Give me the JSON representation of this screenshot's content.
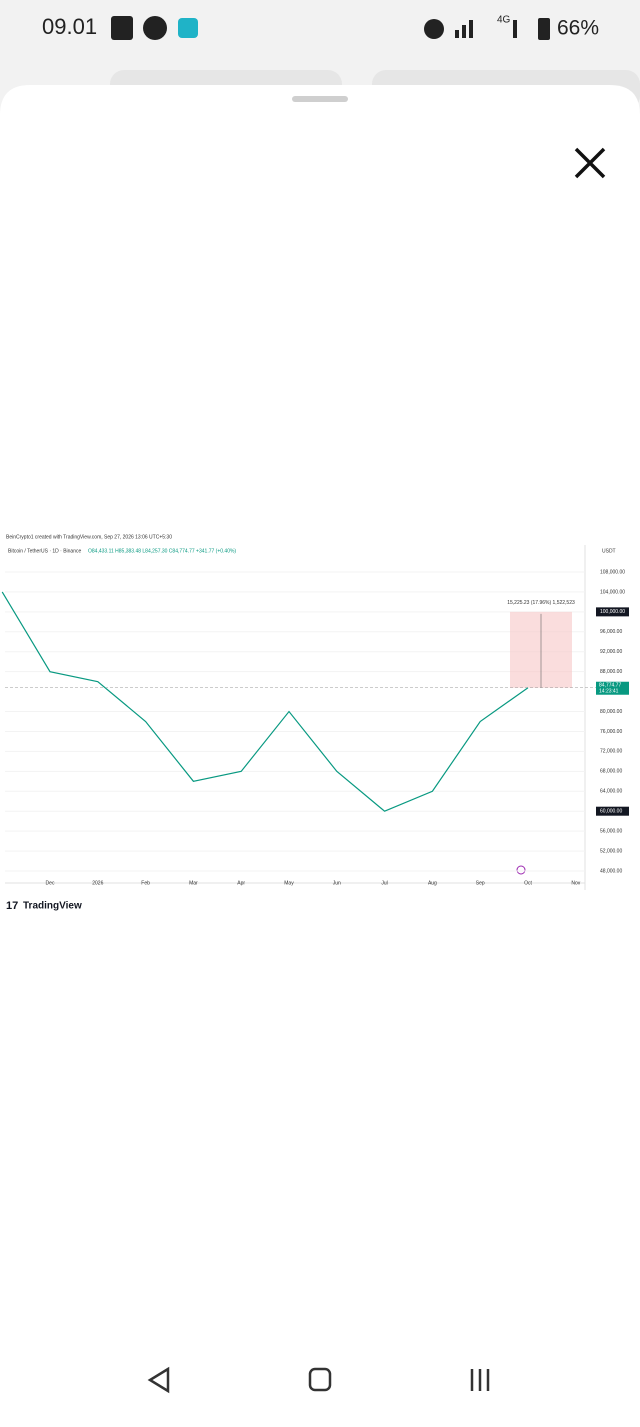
{
  "status_bar": {
    "time": "09.01",
    "network": "4G",
    "battery": "66%"
  },
  "chart_data": {
    "type": "line",
    "header": "BeinCrypto1 created with TradingView.com, Sep 27, 2026 13:06 UTC+5:30",
    "symbol": "Bitcoin / TetherUS · 1D · Binance",
    "ohlc": "O84,433.11 H85,383.48 L84,257.30 C84,774.77 +341.77 (+0.40%)",
    "currency": "USDT",
    "categories": [
      null,
      "Dec",
      "2026",
      "Feb",
      "Mar",
      "Apr",
      "May",
      "Jun",
      "Jul",
      "Aug",
      "Sep",
      "Oct",
      "Nov"
    ],
    "series": [
      {
        "name": "Bitcoin / TetherUS",
        "color": "#089981",
        "values": [
          104000,
          88000,
          86000,
          78000,
          66000,
          68000,
          80000,
          68000,
          60000,
          64000,
          78000,
          84774.77,
          null
        ]
      }
    ],
    "ylim": [
      48000,
      108000
    ],
    "yticks": [
      {
        "value": 48000,
        "label": "48,000.00"
      },
      {
        "value": 52000,
        "label": "52,000.00"
      },
      {
        "value": 56000,
        "label": "56,000.00"
      },
      {
        "value": 60000,
        "label": "60,000.00"
      },
      {
        "value": 64000,
        "label": "64,000.00"
      },
      {
        "value": 68000,
        "label": "68,000.00"
      },
      {
        "value": 72000,
        "label": "72,000.00"
      },
      {
        "value": 76000,
        "label": "76,000.00"
      },
      {
        "value": 80000,
        "label": "80,000.00"
      },
      {
        "value": 88000,
        "label": "88,000.00"
      },
      {
        "value": 92000,
        "label": "92,000.00"
      },
      {
        "value": 96000,
        "label": "96,000.00"
      },
      {
        "value": 100000,
        "label": "100,000.00"
      },
      {
        "value": 104000,
        "label": "104,000.00"
      },
      {
        "value": 108000,
        "label": "108,000.00"
      }
    ],
    "marked_levels": [
      100000,
      60000
    ],
    "last_price": {
      "value": 84774.77,
      "label": "84,774.77",
      "countdown": "14:23:41"
    },
    "target": {
      "top": 100000,
      "label": "15,225.23 (17.96%) 1,522,523"
    },
    "grid": true
  },
  "brand": "TradingView"
}
